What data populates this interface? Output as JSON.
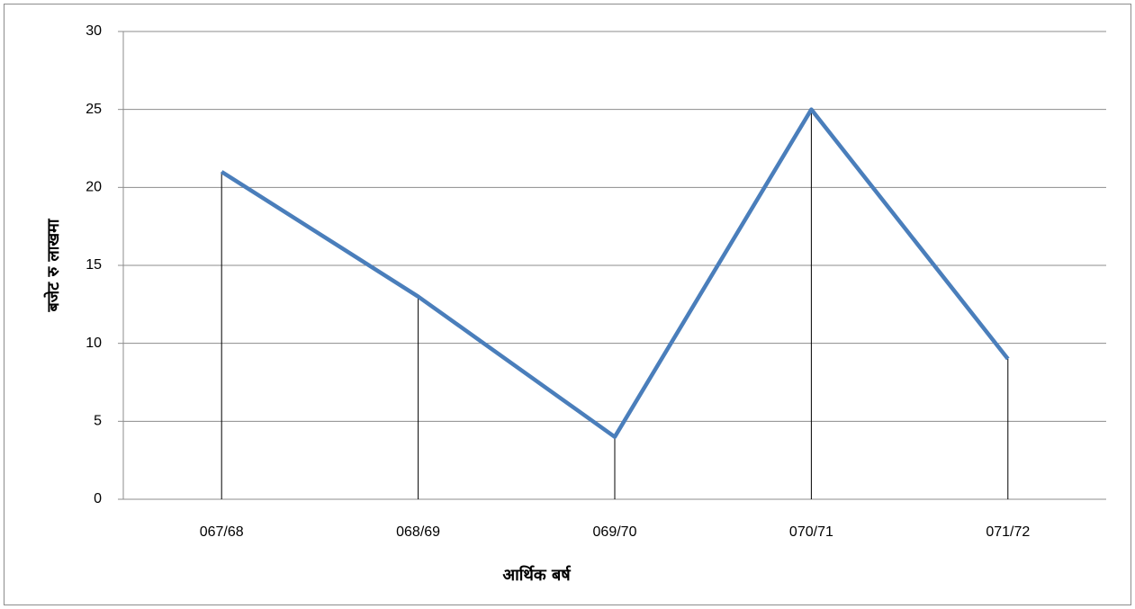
{
  "chart_data": {
    "type": "line",
    "categories": [
      "067/68",
      "068/69",
      "069/70",
      "070/71",
      "071/72"
    ],
    "series": [
      {
        "color": "#4a7ebb",
        "values": [
          21,
          13,
          4,
          25,
          9
        ]
      }
    ],
    "ylim": [
      0,
      30
    ],
    "yticks": [
      0,
      5,
      10,
      15,
      20,
      25,
      30
    ],
    "grid": true,
    "drop_lines": true,
    "x_label": "आर्थिक बर्ष",
    "y_label": "बजेट रु लाखमा"
  }
}
